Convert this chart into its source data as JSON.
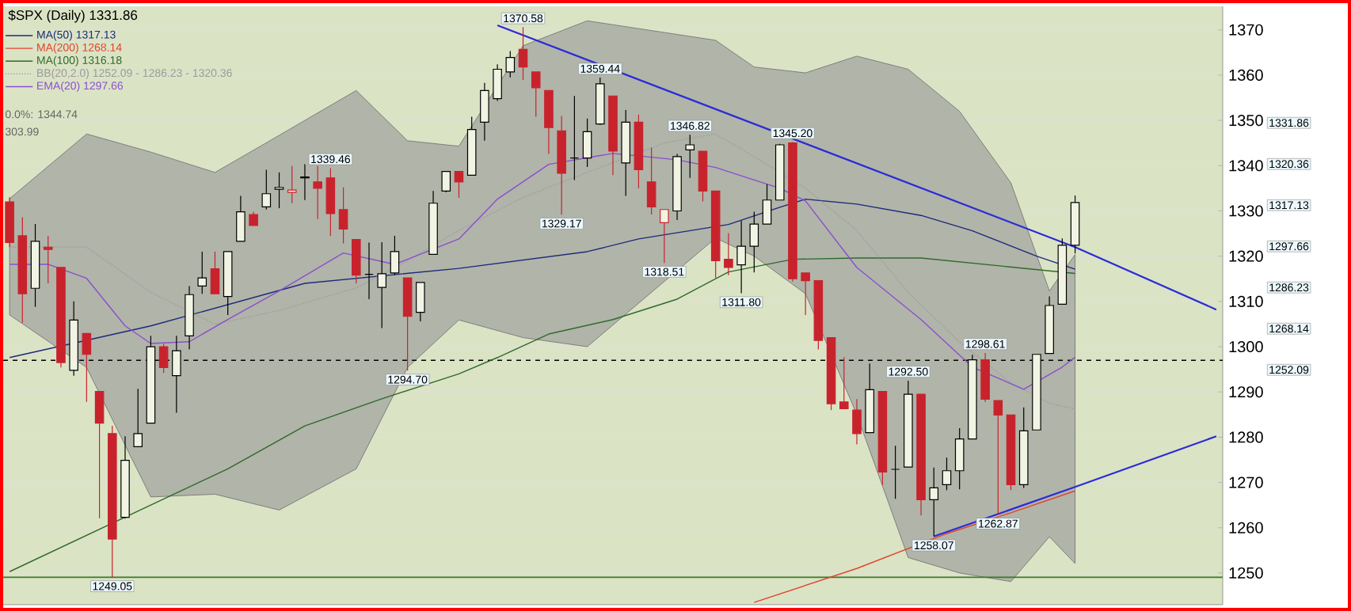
{
  "chart_data": {
    "type": "candlestick",
    "title": "$SPX (Daily) 1331.86",
    "categories": [
      null,
      null,
      null,
      null,
      null,
      null,
      null,
      null,
      null,
      null,
      null,
      null,
      null,
      null,
      null,
      null,
      null,
      null,
      null,
      null,
      null,
      null,
      null,
      null,
      null,
      null,
      null,
      null,
      null,
      null,
      null,
      null,
      null,
      null,
      null,
      null,
      null,
      null,
      null,
      null,
      null,
      null,
      null,
      null,
      null,
      null,
      null,
      null,
      null,
      null,
      null,
      null,
      null,
      null,
      null,
      null,
      null,
      null,
      null,
      null,
      null,
      null,
      null,
      null,
      null,
      null,
      null,
      null,
      null,
      null,
      null,
      null,
      null,
      null,
      null,
      null,
      null,
      null,
      null,
      null,
      null,
      null,
      null,
      null,
      null,
      null,
      null,
      null,
      null,
      null,
      null,
      null,
      null,
      null,
      null
    ],
    "ohlc": [
      [
        1332,
        1333,
        1322,
        1323
      ],
      [
        1324.5,
        1328.6,
        1305.3,
        1311.7
      ],
      [
        1312.9,
        1327.1,
        1308.8,
        1323.3
      ],
      [
        1322,
        1324.5,
        1314,
        1321.5
      ],
      [
        1317.5,
        1317.5,
        1295.4,
        1296.5
      ],
      [
        1294.8,
        1310,
        1293.6,
        1305.9
      ],
      [
        1302.9,
        1302.9,
        1287.8,
        1298.3
      ],
      [
        1290.1,
        1290.1,
        1262.1,
        1283.1
      ],
      [
        1280.8,
        1282.5,
        1249.05,
        1257.5
      ],
      [
        1262.3,
        1280.2,
        1262,
        1274.9
      ],
      [
        1277.9,
        1290.7,
        1277.9,
        1280.8
      ],
      [
        1283.1,
        1302.4,
        1283.1,
        1300
      ],
      [
        1300,
        1300.6,
        1294.2,
        1295.4
      ],
      [
        1293.6,
        1302.4,
        1285.4,
        1299.1
      ],
      [
        1302.4,
        1313.4,
        1299.4,
        1311.5
      ],
      [
        1313.4,
        1321,
        1311.7,
        1315.2
      ],
      [
        1317.2,
        1321,
        1311.7,
        1311.7
      ],
      [
        1311.1,
        1321,
        1307,
        1321
      ],
      [
        1323.3,
        1333.3,
        1323.3,
        1329.8
      ],
      [
        1329.2,
        1329.8,
        1326.8,
        1326.8
      ],
      [
        1330.9,
        1339.1,
        1330.3,
        1333.8
      ],
      [
        1334.8,
        1338.5,
        1330.6,
        1335.2
      ],
      [
        1334.1,
        1339.9,
        1331.7,
        1334.6
      ],
      [
        1337.5,
        1340.3,
        1332.4,
        1337.3
      ],
      [
        1336.4,
        1339.9,
        1328.2,
        1335
      ],
      [
        1337.3,
        1339.46,
        1324.5,
        1329.4
      ],
      [
        1330.3,
        1335.2,
        1322.8,
        1326
      ],
      [
        1323.7,
        1323.7,
        1314,
        1315.8
      ],
      [
        1316,
        1323,
        1310.5,
        1316
      ],
      [
        1313.1,
        1323.1,
        1304.1,
        1316.1
      ],
      [
        1316.3,
        1324.5,
        1315.8,
        1321
      ],
      [
        1315.2,
        1315.2,
        1294.7,
        1306.7
      ],
      [
        1307.6,
        1314.2,
        1305.6,
        1314.2
      ],
      [
        1320.4,
        1334.4,
        1320.4,
        1331.7
      ],
      [
        1334.4,
        1338.7,
        1334.1,
        1338.7
      ],
      [
        1338.7,
        1338.7,
        1332.9,
        1336.4
      ],
      [
        1337.9,
        1350.8,
        1337.9,
        1348
      ],
      [
        1349.6,
        1358.3,
        1345.5,
        1356.6
      ],
      [
        1354.8,
        1362.4,
        1354.3,
        1361.3
      ],
      [
        1360.7,
        1365.3,
        1359.5,
        1363.9
      ],
      [
        1365.7,
        1370.58,
        1358.9,
        1361.8
      ],
      [
        1360.7,
        1360.7,
        1350.8,
        1357.2
      ],
      [
        1356.6,
        1356.6,
        1342.6,
        1348.4
      ],
      [
        1347.7,
        1351,
        1329.17,
        1338.3
      ],
      [
        1341.7,
        1355.4,
        1336.8,
        1341.7
      ],
      [
        1341.7,
        1350.4,
        1339.7,
        1347.5
      ],
      [
        1349.2,
        1359.44,
        1349,
        1358.1
      ],
      [
        1355.4,
        1355.4,
        1337.9,
        1343.2
      ],
      [
        1340.6,
        1352.3,
        1333.3,
        1349.6
      ],
      [
        1349.6,
        1351.3,
        1335,
        1339.1
      ],
      [
        1336.4,
        1344,
        1329.2,
        1330.9
      ],
      [
        1327.4,
        1330.3,
        1318.51,
        1330.3
      ],
      [
        1330,
        1342.6,
        1328,
        1342
      ],
      [
        1343.5,
        1346.82,
        1337.3,
        1344.6
      ],
      [
        1343.2,
        1343.2,
        1332.1,
        1334.4
      ],
      [
        1334.4,
        1334.4,
        1315.2,
        1319
      ],
      [
        1319.3,
        1325.1,
        1315.8,
        1317.5
      ],
      [
        1318.1,
        1327.8,
        1311.8,
        1322.2
      ],
      [
        1322.2,
        1329.8,
        1316.4,
        1327.1
      ],
      [
        1327.1,
        1335.9,
        1327.1,
        1332.4
      ],
      [
        1332.4,
        1344.8,
        1332.4,
        1344.6
      ],
      [
        1345,
        1345.2,
        1314.4,
        1315
      ],
      [
        1316.3,
        1316.3,
        1307,
        1314.6
      ],
      [
        1314.6,
        1314.6,
        1299.4,
        1301.4
      ],
      [
        1302,
        1302,
        1286,
        1287.4
      ],
      [
        1287.8,
        1297.7,
        1286.3,
        1286.3
      ],
      [
        1286,
        1288.4,
        1278.4,
        1280.8
      ],
      [
        1281,
        1296.3,
        1281,
        1290.5
      ],
      [
        1290.1,
        1290.1,
        1269.5,
        1272.3
      ],
      [
        1272.9,
        1278.1,
        1266.4,
        1272.9
      ],
      [
        1273.4,
        1292.5,
        1273.4,
        1289.5
      ],
      [
        1289.5,
        1289.5,
        1262.7,
        1266.2
      ],
      [
        1266.2,
        1273.3,
        1258.07,
        1268.8
      ],
      [
        1269.5,
        1275.5,
        1268.3,
        1272.6
      ],
      [
        1272.6,
        1282,
        1268.5,
        1279.6
      ],
      [
        1279.6,
        1298.2,
        1279.6,
        1297.1
      ],
      [
        1297.1,
        1298.61,
        1287.8,
        1288.4
      ],
      [
        1288.1,
        1288.1,
        1262.87,
        1284.9
      ],
      [
        1284.9,
        1284.9,
        1268.3,
        1269.5
      ],
      [
        1269.5,
        1286.6,
        1268.8,
        1281.4
      ],
      [
        1281.6,
        1298.3,
        1281.6,
        1298.3
      ],
      [
        1298.5,
        1311.1,
        1298.5,
        1309.1
      ],
      [
        1309.4,
        1323.9,
        1309.4,
        1322.4
      ],
      [
        1322.4,
        1333.4,
        1320.6,
        1331.86
      ],
      null,
      null,
      null,
      null,
      null,
      null,
      null,
      null,
      null,
      null,
      null
    ],
    "colors": [
      "#c8232c",
      "#c8232c",
      "#000000",
      "#c8232c",
      "#c8232c",
      "#000000",
      "#c8232c",
      "#c8232c",
      "#c8232c",
      "#000000",
      "#000000",
      "#000000",
      "#c8232c",
      "#000000",
      "#000000",
      "#000000",
      "#c8232c",
      "#000000",
      "#000000",
      "#c8232c",
      "#000000",
      "#000000",
      "#c8232c",
      "#000000",
      "#c8232c",
      "#c8232c",
      "#c8232c",
      "#c8232c",
      "#000000",
      "#000000",
      "#000000",
      "#c8232c",
      "#000000",
      "#000000",
      "#000000",
      "#c8232c",
      "#000000",
      "#000000",
      "#000000",
      "#000000",
      "#c8232c",
      "#c8232c",
      "#c8232c",
      "#c8232c",
      "#000000",
      "#000000",
      "#000000",
      "#c8232c",
      "#000000",
      "#c8232c",
      "#c8232c",
      "#c8232c",
      "#000000",
      "#000000",
      "#c8232c",
      "#c8232c",
      "#c8232c",
      "#000000",
      "#000000",
      "#000000",
      "#000000",
      "#c8232c",
      "#c8232c",
      "#c8232c",
      "#c8232c",
      "#c8232c",
      "#c8232c",
      "#000000",
      "#c8232c",
      "#000000",
      "#000000",
      "#c8232c",
      "#000000",
      "#000000",
      "#000000",
      "#000000",
      "#c8232c",
      "#c8232c",
      "#c8232c",
      "#000000",
      "#000000",
      "#000000",
      "#000000",
      "#000000",
      null,
      null,
      null,
      null,
      null,
      null,
      null,
      null,
      null,
      null,
      null
    ],
    "series": [
      {
        "name": "MA(50) 1317.13",
        "type": "line",
        "color": "#1c2a7a",
        "values": [
          1297.6,
          null,
          null,
          null,
          null,
          null,
          null,
          null,
          null,
          null,
          null,
          1304.6,
          null,
          null,
          null,
          null,
          null,
          null,
          null,
          null,
          null,
          null,
          null,
          1314,
          null,
          null,
          null,
          null,
          null,
          null,
          null,
          null,
          null,
          null,
          null,
          1317.3,
          null,
          null,
          null,
          null,
          null,
          null,
          null,
          null,
          null,
          1321,
          null,
          null,
          null,
          1323.8,
          null,
          null,
          null,
          null,
          null,
          null,
          1327,
          null,
          null,
          null,
          1330.8,
          null,
          1332.6,
          null,
          null,
          null,
          1331.5,
          null,
          null,
          null,
          null,
          1329,
          null,
          null,
          null,
          1325.6,
          null,
          null,
          null,
          null,
          1320,
          null,
          null,
          1317.13,
          null,
          null,
          null,
          null,
          null,
          null,
          null,
          null,
          null,
          null,
          null
        ]
      },
      {
        "name": "MA(200) 1268.14",
        "type": "line",
        "color": "#e0442c",
        "values": [
          null,
          null,
          null,
          null,
          null,
          null,
          null,
          null,
          null,
          null,
          null,
          null,
          null,
          null,
          null,
          null,
          null,
          null,
          null,
          null,
          null,
          null,
          null,
          null,
          null,
          null,
          null,
          null,
          null,
          null,
          null,
          null,
          null,
          null,
          null,
          null,
          null,
          null,
          null,
          null,
          null,
          null,
          null,
          null,
          null,
          null,
          null,
          null,
          null,
          null,
          null,
          null,
          null,
          null,
          null,
          null,
          null,
          null,
          1243.5,
          null,
          null,
          null,
          null,
          null,
          null,
          null,
          1251,
          null,
          null,
          null,
          null,
          null,
          null,
          1258.7,
          null,
          null,
          null,
          null,
          1263.3,
          null,
          null,
          null,
          null,
          1268.14,
          null,
          null,
          null,
          null,
          null,
          null,
          null,
          null,
          null,
          null,
          null
        ]
      },
      {
        "name": "MA(100) 1316.18",
        "type": "line",
        "color": "#2f6a2a",
        "values": [
          1250.3,
          null,
          null,
          null,
          null,
          null,
          null,
          null,
          null,
          null,
          null,
          1265,
          null,
          null,
          null,
          null,
          null,
          1273,
          null,
          null,
          null,
          null,
          null,
          1282.5,
          null,
          null,
          null,
          null,
          null,
          1288.5,
          null,
          null,
          null,
          null,
          null,
          1294,
          null,
          null,
          1297.6,
          null,
          null,
          null,
          1302.8,
          null,
          null,
          null,
          null,
          1306,
          null,
          null,
          null,
          null,
          1310.5,
          null,
          null,
          null,
          1316.5,
          null,
          null,
          null,
          null,
          1319.3,
          null,
          null,
          null,
          null,
          1319.6,
          null,
          null,
          null,
          null,
          1319.6,
          null,
          null,
          null,
          null,
          null,
          null,
          null,
          null,
          null,
          null,
          null,
          1316.18,
          null,
          null,
          null,
          null,
          null,
          null,
          null,
          null,
          null,
          null,
          null
        ]
      },
      {
        "name": "BB(20,2.0) 1252.09 - 1286.23 - 1320.36",
        "type": "line",
        "line_style": "dotted",
        "color": "#9a9a9a",
        "values": [
          1322,
          null,
          null,
          null,
          null,
          null,
          1322,
          null,
          null,
          null,
          null,
          1312,
          null,
          null,
          null,
          null,
          1305,
          null,
          null,
          null,
          null,
          1308,
          null,
          null,
          null,
          null,
          null,
          1313,
          null,
          null,
          null,
          1319,
          null,
          null,
          null,
          1325.7,
          null,
          null,
          null,
          null,
          1333,
          null,
          null,
          null,
          null,
          1338.5,
          null,
          null,
          null,
          null,
          null,
          1345,
          null,
          null,
          null,
          1347,
          null,
          null,
          1342,
          null,
          null,
          null,
          1335,
          null,
          null,
          null,
          1325.7,
          null,
          null,
          null,
          1312,
          null,
          null,
          null,
          1301,
          null,
          null,
          null,
          1292,
          null,
          null,
          1287.5,
          null,
          1286.23,
          null,
          null,
          null,
          null,
          null,
          null,
          null,
          null,
          null,
          null,
          null
        ],
        "upper": [
          1332.7,
          null,
          null,
          null,
          null,
          null,
          1347,
          null,
          null,
          null,
          null,
          1343,
          null,
          null,
          null,
          null,
          1338.5,
          null,
          null,
          null,
          null,
          1346.7,
          null,
          null,
          null,
          null,
          null,
          1356.6,
          null,
          null,
          null,
          1345.5,
          null,
          null,
          null,
          1344.3,
          null,
          null,
          null,
          null,
          1366.5,
          null,
          null,
          null,
          null,
          1372,
          null,
          null,
          null,
          null,
          null,
          null,
          null,
          null,
          null,
          1367.7,
          null,
          null,
          1361.8,
          null,
          null,
          null,
          1360.5,
          null,
          null,
          null,
          1364.2,
          null,
          null,
          null,
          1361.3,
          null,
          null,
          null,
          1352,
          null,
          null,
          null,
          1336.2,
          null,
          null,
          1312.3,
          null,
          1320.36,
          null,
          null,
          null,
          null,
          null,
          null,
          null,
          null,
          null,
          null,
          null
        ],
        "lower": [
          1307,
          null,
          null,
          null,
          null,
          null,
          1295.4,
          null,
          null,
          null,
          null,
          1266.8,
          null,
          null,
          null,
          null,
          1267.4,
          null,
          null,
          null,
          null,
          1263.9,
          null,
          null,
          null,
          null,
          null,
          1273,
          null,
          null,
          null,
          1295.4,
          null,
          null,
          null,
          1305.9,
          null,
          null,
          null,
          null,
          1302,
          null,
          null,
          null,
          null,
          1300,
          null,
          null,
          null,
          null,
          null,
          null,
          null,
          null,
          null,
          1324,
          null,
          null,
          1320,
          null,
          null,
          null,
          1311.7,
          null,
          null,
          null,
          1285,
          null,
          null,
          null,
          1253.4,
          null,
          null,
          null,
          1250,
          null,
          null,
          null,
          1248.1,
          null,
          null,
          1258,
          null,
          1252.09,
          null,
          null,
          null,
          null,
          null,
          null,
          null,
          null,
          null,
          null,
          null
        ]
      },
      {
        "name": "EMA(20) 1297.66",
        "type": "line",
        "color": "#8a4fd0",
        "values": [
          1318.2,
          null,
          null,
          1318.2,
          null,
          null,
          1315.1,
          null,
          null,
          1304.6,
          null,
          1300.7,
          null,
          null,
          1301.1,
          null,
          null,
          1306,
          null,
          null,
          null,
          1312.3,
          null,
          null,
          null,
          null,
          1320.7,
          null,
          null,
          null,
          1318.2,
          null,
          null,
          null,
          null,
          1323.8,
          null,
          null,
          1332.6,
          null,
          null,
          null,
          1340.3,
          null,
          null,
          null,
          null,
          1342.7,
          null,
          null,
          null,
          null,
          1341.3,
          null,
          null,
          1339.6,
          null,
          null,
          null,
          null,
          1335,
          null,
          1332.2,
          null,
          null,
          null,
          1317.5,
          null,
          null,
          null,
          null,
          1306,
          null,
          null,
          null,
          1295.5,
          null,
          null,
          null,
          1290.6,
          null,
          null,
          1295.5,
          1297.66,
          null,
          null,
          null,
          null,
          null,
          null,
          null,
          null,
          null,
          null,
          null
        ]
      },
      {
        "type": "line",
        "color": "#2b2bd6",
        "values": [
          null,
          null,
          null,
          null,
          null,
          null,
          null,
          null,
          null,
          null,
          null,
          null,
          null,
          null,
          null,
          null,
          null,
          null,
          null,
          null,
          null,
          null,
          null,
          null,
          null,
          null,
          null,
          null,
          null,
          null,
          null,
          null,
          null,
          null,
          null,
          null,
          null,
          null,
          1371,
          null,
          null,
          null,
          null,
          null,
          null,
          null,
          null,
          null,
          null,
          null,
          null,
          null,
          null,
          null,
          null,
          null,
          null,
          null,
          null,
          null,
          null,
          null,
          null,
          null,
          null,
          null,
          null,
          null,
          null,
          null,
          null,
          null,
          null,
          null,
          null,
          null,
          null,
          null,
          null,
          null,
          null,
          null,
          null,
          1322,
          null,
          null,
          null,
          null,
          null,
          null,
          null,
          null,
          null,
          null,
          1308.2
        ]
      },
      {
        "type": "line",
        "color": "#2b2bd6",
        "values": [
          null,
          null,
          null,
          null,
          null,
          null,
          null,
          null,
          null,
          null,
          null,
          null,
          null,
          null,
          null,
          null,
          null,
          null,
          null,
          null,
          null,
          null,
          null,
          null,
          null,
          null,
          null,
          null,
          null,
          null,
          null,
          null,
          null,
          null,
          null,
          null,
          null,
          null,
          null,
          null,
          null,
          null,
          null,
          null,
          null,
          null,
          null,
          null,
          null,
          null,
          null,
          null,
          null,
          null,
          null,
          null,
          null,
          null,
          null,
          null,
          null,
          null,
          null,
          null,
          null,
          null,
          null,
          null,
          null,
          null,
          null,
          null,
          1258.07,
          null,
          null,
          null,
          null,
          null,
          null,
          null,
          null,
          null,
          null,
          1269,
          null,
          null,
          null,
          null,
          null,
          null,
          null,
          null,
          null,
          null,
          1280.2
        ]
      }
    ],
    "ref_lines": [
      {
        "axis": "y",
        "value": 1249.05,
        "color": "#3a7a2a"
      },
      {
        "axis": "y",
        "value": 1297,
        "color": "#000000",
        "line_style": "dashed"
      }
    ],
    "ylim": [
      1243,
      1375.2
    ],
    "yticks": [
      1250,
      1260,
      1270,
      1280,
      1290,
      1300,
      1310,
      1320,
      1330,
      1340,
      1350,
      1360,
      1370
    ],
    "grid": "y",
    "legend": "top left",
    "tick_labels": "y",
    "annotations": [
      "0.0%: 1344.74",
      "303.99",
      {
        "text": "1370.58",
        "y": 1370.58
      },
      {
        "text": "1359.44",
        "y": 1359.44
      },
      {
        "text": "1346.82",
        "y": 1346.82
      },
      {
        "text": "1345.20",
        "y": 1345.2
      },
      {
        "text": "1339.46",
        "y": 1339.46
      },
      {
        "text": "1298.61",
        "y": 1298.61
      },
      {
        "text": "1292.50",
        "y": 1292.5
      },
      {
        "text": "1329.17",
        "y": 1329.17
      },
      {
        "text": "1318.51",
        "y": 1318.51
      },
      {
        "text": "1311.80",
        "y": 1311.8
      },
      {
        "text": "1294.70",
        "y": 1294.7
      },
      {
        "text": "1249.05",
        "y": 1249.05
      },
      {
        "text": "1258.07",
        "y": 1258.07
      },
      {
        "text": "1262.87",
        "y": 1262.87
      },
      "1331.86",
      "1320.36",
      "1317.13",
      "1297.66",
      "1286.23",
      "1268.14",
      "1252.09"
    ]
  }
}
